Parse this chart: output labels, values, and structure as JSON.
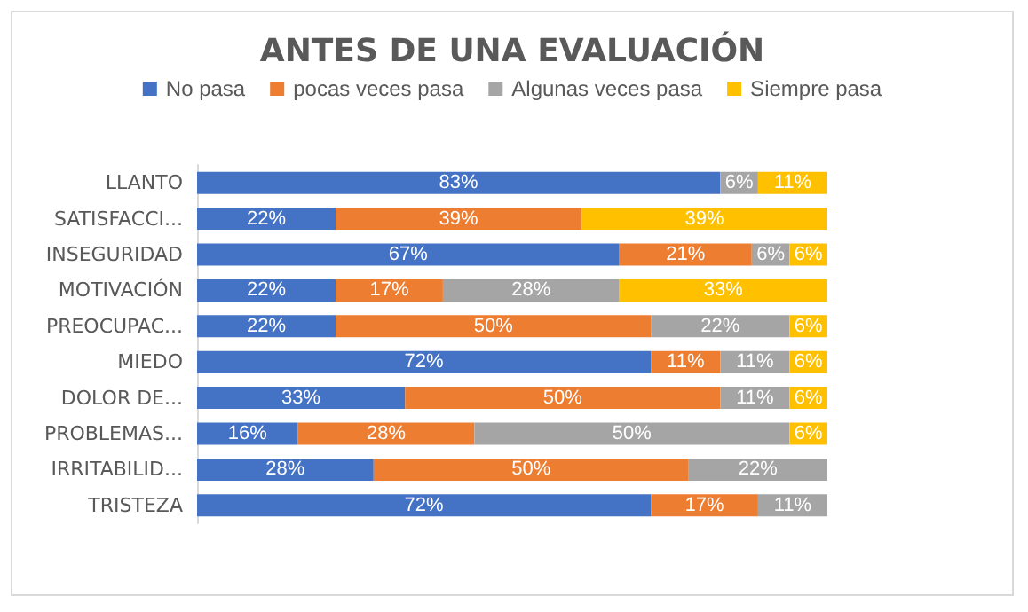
{
  "chart_data": {
    "type": "bar",
    "orientation": "horizontal",
    "stacked": true,
    "title": "ANTES DE UNA EVALUACIÓN",
    "legend": "top",
    "grid": false,
    "categories": [
      "LLANTO",
      "SATISFACCI...",
      "INSEGURIDAD",
      "MOTIVACIÓN",
      "PREOCUPAC...",
      "MIEDO",
      "DOLOR DE...",
      "PROBLEMAS...",
      "IRRITABILID...",
      "TRISTEZA"
    ],
    "series": [
      {
        "name": "No pasa",
        "color": "#4472c4",
        "values": [
          83,
          22,
          67,
          22,
          22,
          72,
          33,
          16,
          28,
          72
        ],
        "value_labels": [
          "83%",
          "22%",
          "67%",
          "22%",
          "22%",
          "72%",
          "33%",
          "16%",
          "28%",
          "72%"
        ]
      },
      {
        "name": "pocas veces pasa",
        "color": "#ed7d31",
        "values": [
          null,
          39,
          21,
          17,
          50,
          11,
          50,
          28,
          50,
          17
        ],
        "value_labels": [
          null,
          "39%",
          "21%",
          "17%",
          "50%",
          "11%",
          "50%",
          "28%",
          "50%",
          "17%"
        ]
      },
      {
        "name": "Algunas veces pasa",
        "color": "#a5a5a5",
        "values": [
          6,
          null,
          6,
          28,
          22,
          11,
          11,
          50,
          22,
          11
        ],
        "value_labels": [
          "6%",
          null,
          "6%",
          "28%",
          "22%",
          "11%",
          "11%",
          "50%",
          "22%",
          "11%"
        ]
      },
      {
        "name": "Siempre pasa",
        "color": "#ffc000",
        "values": [
          11,
          39,
          6,
          33,
          6,
          6,
          6,
          6,
          null,
          null
        ],
        "value_labels": [
          "11%",
          "39%",
          "6%",
          "33%",
          "6%",
          "6%",
          "6%",
          "6%",
          null,
          null
        ]
      }
    ]
  }
}
